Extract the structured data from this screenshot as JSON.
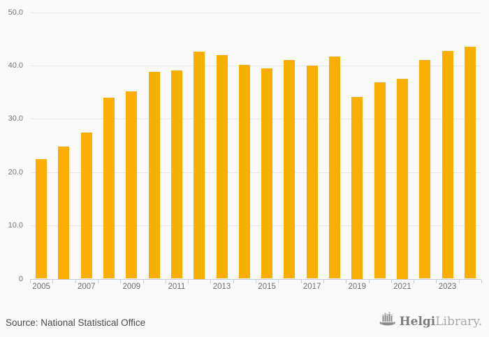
{
  "chart_data": {
    "type": "bar",
    "title": "",
    "xlabel": "",
    "ylabel": "",
    "categories": [
      "2005",
      "2006",
      "2007",
      "2008",
      "2009",
      "2010",
      "2011",
      "2012",
      "2013",
      "2014",
      "2015",
      "2016",
      "2017",
      "2018",
      "2019",
      "2020",
      "2021",
      "2022",
      "2023",
      "2024"
    ],
    "values": [
      22.5,
      24.8,
      27.4,
      34.0,
      35.2,
      38.8,
      39.1,
      42.6,
      41.9,
      40.1,
      39.5,
      41.0,
      40.0,
      41.7,
      34.1,
      36.9,
      37.5,
      41.0,
      42.7,
      43.5
    ],
    "ylim": [
      0,
      50
    ],
    "ytick_step": 10,
    "ytick_labels": [
      "0",
      "10.0",
      "20.0",
      "30.0",
      "40.0",
      "50.0"
    ],
    "xtick_labels_shown": [
      "2005",
      "2007",
      "2009",
      "2011",
      "2013",
      "2015",
      "2017",
      "2019",
      "2021",
      "2023"
    ],
    "grid": true,
    "legend_position": "none"
  },
  "colors": {
    "bar": "#FAAE02",
    "background": "#FAFAFA",
    "gridline": "#E7E7E7",
    "axis": "#C2CCDB",
    "tick_label": "#757575",
    "source_text": "#4A4A4A",
    "logo_primary": "#7D7D7D",
    "logo_secondary": "#A9A9A9"
  },
  "footer": {
    "source_label": "Source: National Statistical Office",
    "logo": {
      "icon": "helgi-ship-bar-chart-icon",
      "brand_primary": "Helgi",
      "brand_secondary": "Library."
    }
  }
}
